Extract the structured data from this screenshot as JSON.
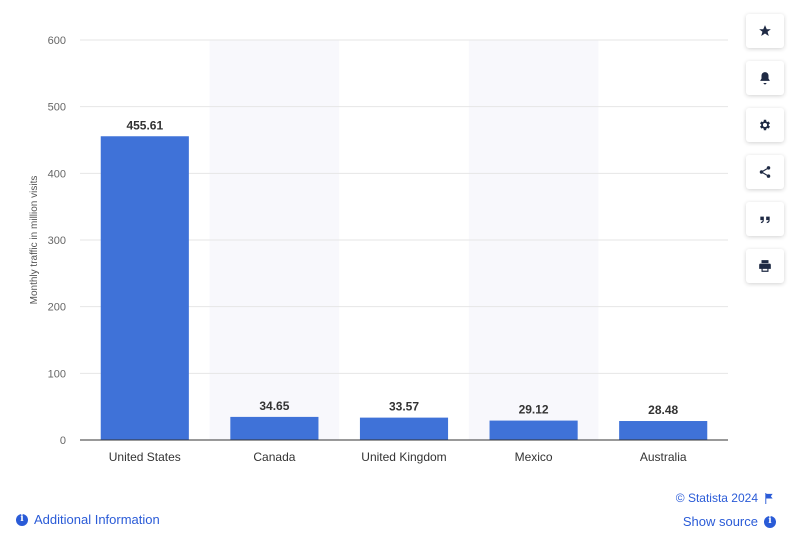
{
  "chart_data": {
    "type": "bar",
    "categories": [
      "United States",
      "Canada",
      "United Kingdom",
      "Mexico",
      "Australia"
    ],
    "values": [
      455.61,
      34.65,
      33.57,
      29.12,
      28.48
    ],
    "value_labels": [
      "455.61",
      "34.65",
      "33.57",
      "29.12",
      "28.48"
    ],
    "ylabel": "Monthly traffic in million visits",
    "xlabel": "",
    "ylim": [
      0,
      600
    ],
    "yticks": [
      0,
      100,
      200,
      300,
      400,
      500,
      600
    ],
    "grid": true,
    "bar_color": "#3f72d8"
  },
  "toolbar": {
    "buttons": [
      {
        "name": "favorite",
        "icon": "star-icon"
      },
      {
        "name": "notification",
        "icon": "bell-icon"
      },
      {
        "name": "settings",
        "icon": "gear-icon"
      },
      {
        "name": "share",
        "icon": "share-icon"
      },
      {
        "name": "cite",
        "icon": "quote-icon"
      },
      {
        "name": "print",
        "icon": "print-icon"
      }
    ]
  },
  "footer": {
    "copyright": "© Statista 2024",
    "show_source": "Show source",
    "additional_info": "Additional Information"
  },
  "colors": {
    "accent": "#2a5bd7",
    "bar": "#3f72d8"
  }
}
